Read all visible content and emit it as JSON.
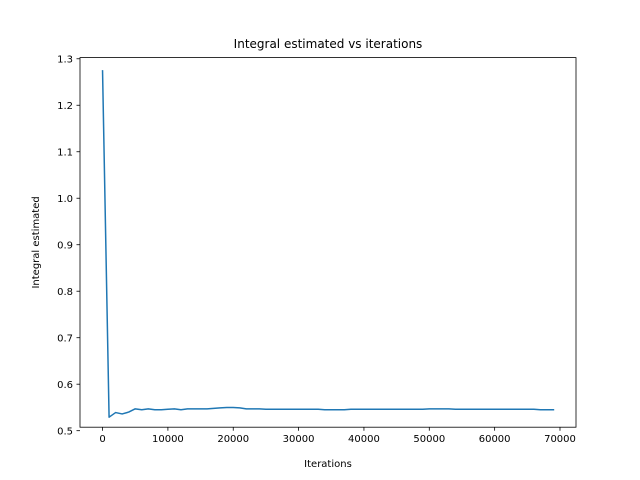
{
  "chart_data": {
    "type": "line",
    "title": "Integral estimated vs iterations",
    "xlabel": "Iterations",
    "ylabel": "Integral estimated",
    "xlim": [
      -3450,
      72450
    ],
    "ylim": [
      0.5075,
      1.3025
    ],
    "grid": false,
    "x_ticks": [
      0,
      10000,
      20000,
      30000,
      40000,
      50000,
      60000,
      70000
    ],
    "y_ticks": [
      0.5,
      0.6,
      0.7,
      0.8,
      0.9,
      1.0,
      1.1,
      1.2,
      1.3
    ],
    "series": [
      {
        "color": "#1f77b4",
        "x": [
          0,
          1000,
          2000,
          3000,
          4000,
          5000,
          6000,
          7000,
          8000,
          9000,
          10000,
          11000,
          12000,
          13000,
          14000,
          15000,
          16000,
          17000,
          18000,
          19000,
          20000,
          21000,
          22000,
          23000,
          24000,
          25000,
          26000,
          27000,
          28000,
          29000,
          30000,
          31000,
          32000,
          33000,
          34000,
          35000,
          36000,
          37000,
          38000,
          39000,
          40000,
          41000,
          42000,
          43000,
          44000,
          45000,
          46000,
          47000,
          48000,
          49000,
          50000,
          51000,
          52000,
          53000,
          54000,
          55000,
          56000,
          57000,
          58000,
          59000,
          60000,
          61000,
          62000,
          63000,
          64000,
          65000,
          66000,
          67000,
          68000,
          69000
        ],
        "y": [
          1.274,
          0.529,
          0.539,
          0.536,
          0.54,
          0.547,
          0.545,
          0.547,
          0.545,
          0.545,
          0.546,
          0.547,
          0.545,
          0.547,
          0.547,
          0.547,
          0.547,
          0.548,
          0.549,
          0.55,
          0.55,
          0.549,
          0.547,
          0.547,
          0.547,
          0.546,
          0.546,
          0.546,
          0.546,
          0.546,
          0.546,
          0.546,
          0.546,
          0.546,
          0.545,
          0.545,
          0.545,
          0.545,
          0.546,
          0.546,
          0.546,
          0.546,
          0.546,
          0.546,
          0.546,
          0.546,
          0.546,
          0.546,
          0.546,
          0.546,
          0.547,
          0.547,
          0.547,
          0.547,
          0.546,
          0.546,
          0.546,
          0.546,
          0.546,
          0.546,
          0.546,
          0.546,
          0.546,
          0.546,
          0.546,
          0.546,
          0.546,
          0.545,
          0.545,
          0.545
        ]
      }
    ]
  }
}
